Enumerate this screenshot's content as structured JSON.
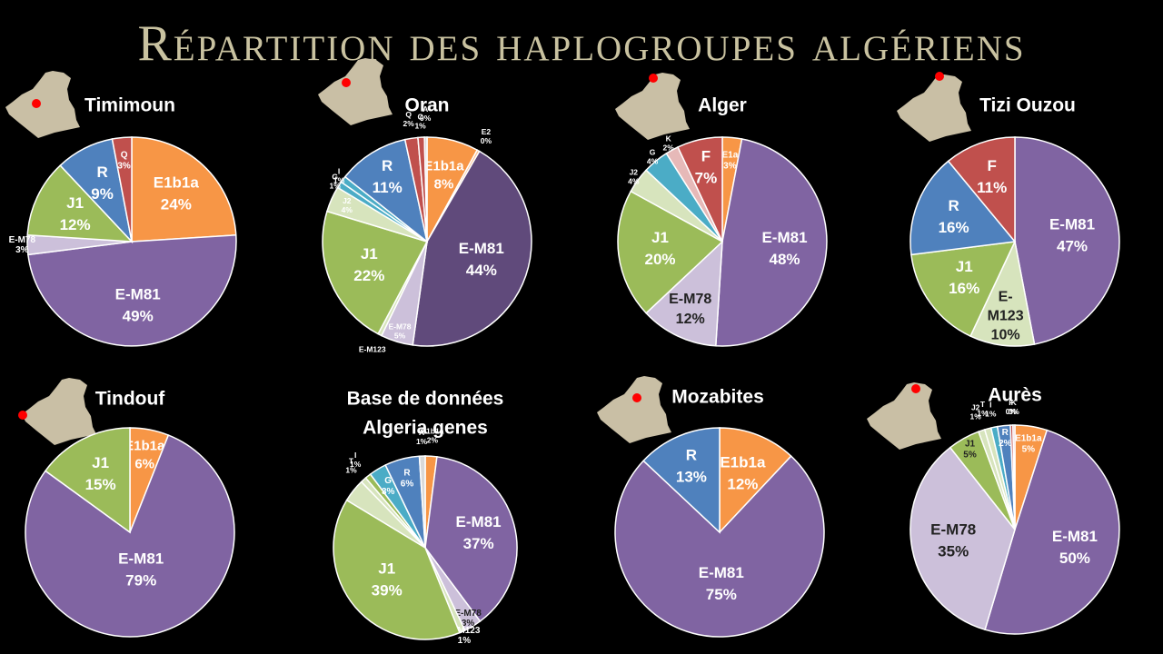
{
  "title": "Répartition des haplogroupes algériens",
  "colors": {
    "E1b1a": "#f79646",
    "E-M81": "#8064a2",
    "E-M81-dark": "#604a7b",
    "E-M78": "#ccc0da",
    "E-M123": "#d7e4bd",
    "J1": "#9bbb59",
    "J2": "#d7e4bd",
    "R": "#4f81bd",
    "Q": "#c0504d",
    "F": "#c0504d",
    "G": "#4bacc6",
    "I": "#4bacc6",
    "T": "#d7e4bd",
    "K": "#e6b9b8",
    "C": "#c0504d",
    "A": "#d9d9d9",
    "E2": "#fac090",
    "map": "#c9bfa5",
    "dot": "#ff0000"
  },
  "chart_data": [
    {
      "type": "pie",
      "title": "Timimoun",
      "slices": [
        {
          "label": "E1b1a",
          "value": 24,
          "pct": "24%",
          "color": "#f79646"
        },
        {
          "label": "E-M81",
          "value": 49,
          "pct": "49%",
          "color": "#8064a2"
        },
        {
          "label": "E-M78",
          "value": 3,
          "pct": "3%",
          "color": "#ccc0da"
        },
        {
          "label": "J1",
          "value": 12,
          "pct": "12%",
          "color": "#9bbb59"
        },
        {
          "label": "R",
          "value": 9,
          "pct": "9%",
          "color": "#4f81bd"
        },
        {
          "label": "Q",
          "value": 3,
          "pct": "3%",
          "color": "#c0504d"
        }
      ]
    },
    {
      "type": "pie",
      "title": "Oran",
      "slices": [
        {
          "label": "E1b1a",
          "value": 8,
          "pct": "8%",
          "color": "#f79646"
        },
        {
          "label": "E2",
          "value": 0.4,
          "pct": "0%",
          "color": "#fac090"
        },
        {
          "label": "E-M81",
          "value": 44,
          "pct": "44%",
          "color": "#604a7b"
        },
        {
          "label": "E-M78",
          "value": 5,
          "pct": "5%",
          "color": "#ccc0da"
        },
        {
          "label": "E-M123",
          "value": 0.6,
          "pct": "",
          "color": "#d7e4bd"
        },
        {
          "label": "J1",
          "value": 22,
          "pct": "22%",
          "color": "#9bbb59"
        },
        {
          "label": "J2",
          "value": 4,
          "pct": "4%",
          "color": "#d7e4bd"
        },
        {
          "label": "G",
          "value": 1,
          "pct": "1%",
          "color": "#4bacc6"
        },
        {
          "label": "I",
          "value": 1,
          "pct": "1%",
          "color": "#4bacc6"
        },
        {
          "label": "R",
          "value": 11,
          "pct": "11%",
          "color": "#4f81bd"
        },
        {
          "label": "Q",
          "value": 2,
          "pct": "2%",
          "color": "#c0504d"
        },
        {
          "label": "C",
          "value": 1,
          "pct": "1%",
          "color": "#c0504d"
        },
        {
          "label": "A",
          "value": 0.4,
          "pct": "0%",
          "color": "#d9d9d9"
        }
      ]
    },
    {
      "type": "pie",
      "title": "Alger",
      "slices": [
        {
          "label": "E1a",
          "value": 3,
          "pct": "3%",
          "color": "#f79646"
        },
        {
          "label": "E-M81",
          "value": 48,
          "pct": "48%",
          "color": "#8064a2"
        },
        {
          "label": "E-M78",
          "value": 12,
          "pct": "12%",
          "color": "#ccc0da"
        },
        {
          "label": "J1",
          "value": 20,
          "pct": "20%",
          "color": "#9bbb59"
        },
        {
          "label": "J2",
          "value": 4,
          "pct": "4%",
          "color": "#d7e4bd"
        },
        {
          "label": "G",
          "value": 4,
          "pct": "4%",
          "color": "#4bacc6"
        },
        {
          "label": "K",
          "value": 2,
          "pct": "2%",
          "color": "#e6b9b8"
        },
        {
          "label": "F",
          "value": 7,
          "pct": "7%",
          "color": "#c0504d"
        }
      ]
    },
    {
      "type": "pie",
      "title": "Tizi Ouzou",
      "slices": [
        {
          "label": "E-M81",
          "value": 47,
          "pct": "47%",
          "color": "#8064a2"
        },
        {
          "label": "E-M123",
          "value": 10,
          "pct": "10%",
          "color": "#d7e4bd"
        },
        {
          "label": "J1",
          "value": 16,
          "pct": "16%",
          "color": "#9bbb59"
        },
        {
          "label": "R",
          "value": 16,
          "pct": "16%",
          "color": "#4f81bd"
        },
        {
          "label": "F",
          "value": 11,
          "pct": "11%",
          "color": "#c0504d"
        }
      ]
    },
    {
      "type": "pie",
      "title": "Tindouf",
      "slices": [
        {
          "label": "E1b1a",
          "value": 6,
          "pct": "6%",
          "color": "#f79646"
        },
        {
          "label": "E-M81",
          "value": 79,
          "pct": "79%",
          "color": "#8064a2"
        },
        {
          "label": "J1",
          "value": 15,
          "pct": "15%",
          "color": "#9bbb59"
        }
      ]
    },
    {
      "type": "pie",
      "title": "Base de données Algeria genes",
      "title_lines": [
        "Base de données",
        "Algeria genes"
      ],
      "slices": [
        {
          "label": "E1b1a",
          "value": 2,
          "pct": "2%",
          "color": "#f79646"
        },
        {
          "label": "E-M81",
          "value": 37,
          "pct": "37%",
          "color": "#8064a2"
        },
        {
          "label": "E-M78",
          "value": 3,
          "pct": "3%",
          "color": "#ccc0da"
        },
        {
          "label": "E-M123",
          "value": 1,
          "pct": "1%",
          "color": "#d7e4bd"
        },
        {
          "label": "J1",
          "value": 39,
          "pct": "39%",
          "color": "#9bbb59"
        },
        {
          "label": "J2",
          "value": 4,
          "pct": "",
          "color": "#d7e4bd"
        },
        {
          "label": "T",
          "value": 1,
          "pct": "1%",
          "color": "#d7e4bd"
        },
        {
          "label": "I",
          "value": 1,
          "pct": "1%",
          "color": "#9bbb59"
        },
        {
          "label": "G",
          "value": 3,
          "pct": "3%",
          "color": "#4bacc6"
        },
        {
          "label": "R",
          "value": 6,
          "pct": "6%",
          "color": "#4f81bd"
        },
        {
          "label": "A",
          "value": 1,
          "pct": "1%",
          "color": "#d9d9d9"
        }
      ]
    },
    {
      "type": "pie",
      "title": "Mozabites",
      "slices": [
        {
          "label": "E1b1a",
          "value": 12,
          "pct": "12%",
          "color": "#f79646"
        },
        {
          "label": "E-M81",
          "value": 75,
          "pct": "75%",
          "color": "#8064a2"
        },
        {
          "label": "R",
          "value": 13,
          "pct": "13%",
          "color": "#4f81bd"
        }
      ]
    },
    {
      "type": "pie",
      "title": "Aurès",
      "slices": [
        {
          "label": "E1b1a",
          "value": 5,
          "pct": "5%",
          "color": "#f79646"
        },
        {
          "label": "E-M81",
          "value": 50,
          "pct": "50%",
          "color": "#8064a2"
        },
        {
          "label": "E-M78",
          "value": 35,
          "pct": "35%",
          "color": "#ccc0da"
        },
        {
          "label": "J1",
          "value": 5,
          "pct": "5%",
          "color": "#9bbb59"
        },
        {
          "label": "J2",
          "value": 1,
          "pct": "1%",
          "color": "#d7e4bd"
        },
        {
          "label": "T",
          "value": 1,
          "pct": "1%",
          "color": "#d7e4bd"
        },
        {
          "label": "I",
          "value": 1,
          "pct": "1%",
          "color": "#4bacc6"
        },
        {
          "label": "R",
          "value": 2,
          "pct": "2%",
          "color": "#4f81bd"
        },
        {
          "label": "F",
          "value": 0.4,
          "pct": "0%",
          "color": "#c0504d"
        },
        {
          "label": "K",
          "value": 0.3,
          "pct": "0%",
          "color": "#e6b9b8"
        }
      ]
    }
  ]
}
